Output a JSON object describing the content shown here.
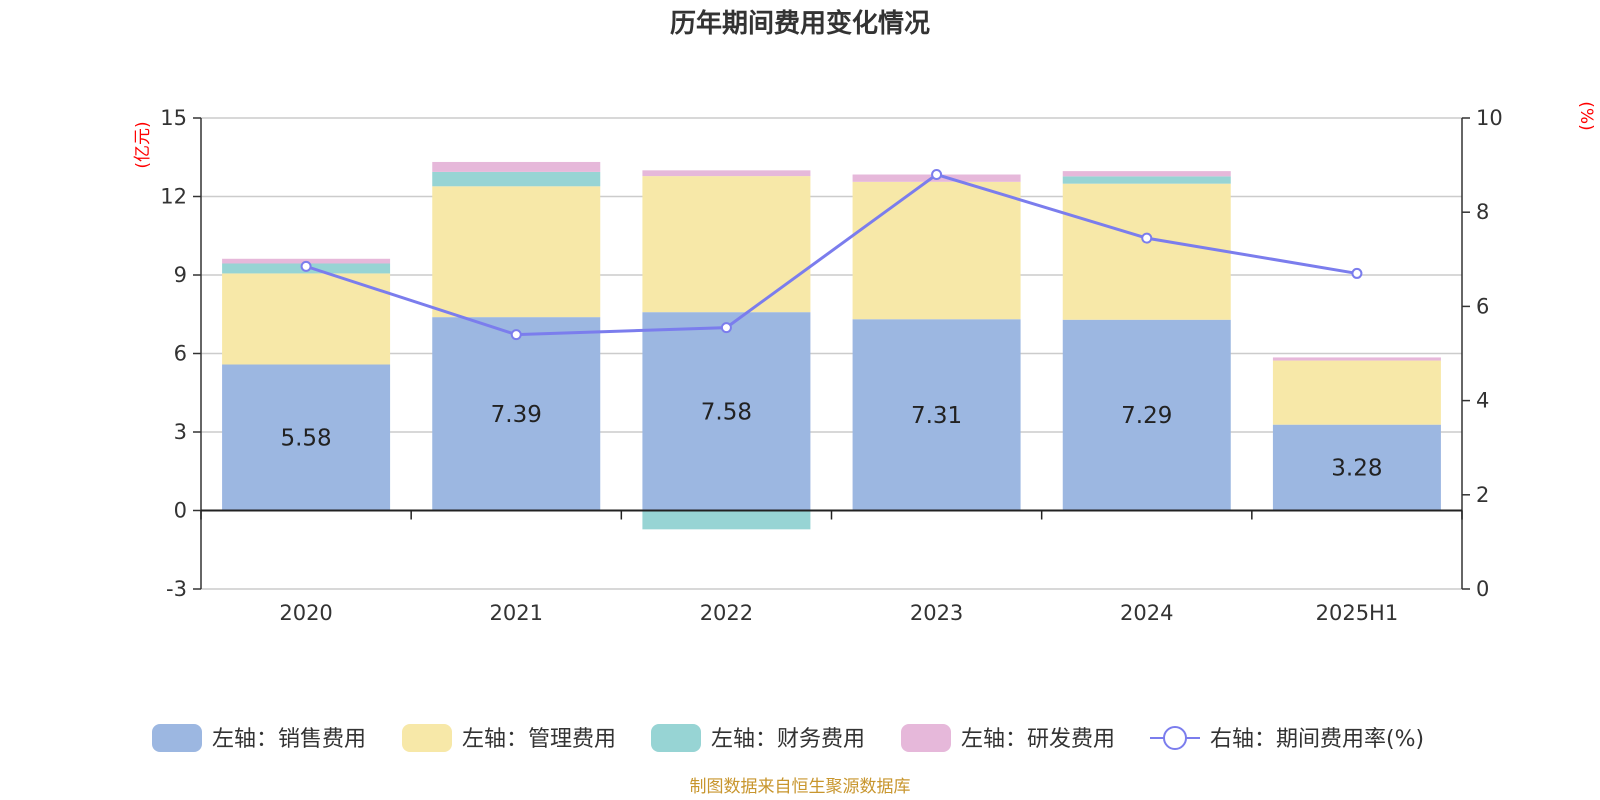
{
  "chart_data": {
    "type": "bar",
    "title": "历年期间费用变化情况",
    "categories": [
      "2020",
      "2021",
      "2022",
      "2023",
      "2024",
      "2025H1"
    ],
    "left_axis": {
      "unit": "(亿元)",
      "ylim": [
        -3,
        15
      ],
      "ticks": [
        -3,
        0,
        3,
        6,
        9,
        12,
        15
      ]
    },
    "right_axis": {
      "unit": "(%)",
      "ylim": [
        0,
        10
      ],
      "ticks": [
        0,
        2,
        4,
        6,
        8,
        10
      ]
    },
    "series": [
      {
        "name": "左轴：销售费用",
        "kind": "bar",
        "axis": "left",
        "color": "#9cb7e1",
        "values": [
          5.58,
          7.39,
          7.58,
          7.31,
          7.29,
          3.28
        ]
      },
      {
        "name": "左轴：管理费用",
        "kind": "bar",
        "axis": "left",
        "color": "#f7e8a8",
        "values": [
          3.48,
          5.0,
          5.2,
          5.25,
          5.2,
          2.45
        ]
      },
      {
        "name": "左轴：财务费用",
        "kind": "bar",
        "axis": "left",
        "color": "#97d4d4",
        "values": [
          0.38,
          0.55,
          -0.72,
          0.0,
          0.28,
          0.0
        ]
      },
      {
        "name": "左轴：研发费用",
        "kind": "bar",
        "axis": "left",
        "color": "#e6b8da",
        "values": [
          0.18,
          0.38,
          0.22,
          0.28,
          0.2,
          0.12
        ]
      },
      {
        "name": "右轴：期间费用率(%)",
        "kind": "line",
        "axis": "right",
        "color": "#7b7ded",
        "values": [
          6.85,
          5.4,
          5.55,
          8.8,
          7.45,
          6.7
        ]
      }
    ],
    "data_labels": [
      "5.58",
      "7.39",
      "7.58",
      "7.31",
      "7.29",
      "3.28"
    ],
    "grid": true,
    "legend_position": "bottom",
    "unit_color": "#ff0000"
  },
  "source_note": "制图数据来自恒生聚源数据库",
  "source_color": "#c8962e"
}
